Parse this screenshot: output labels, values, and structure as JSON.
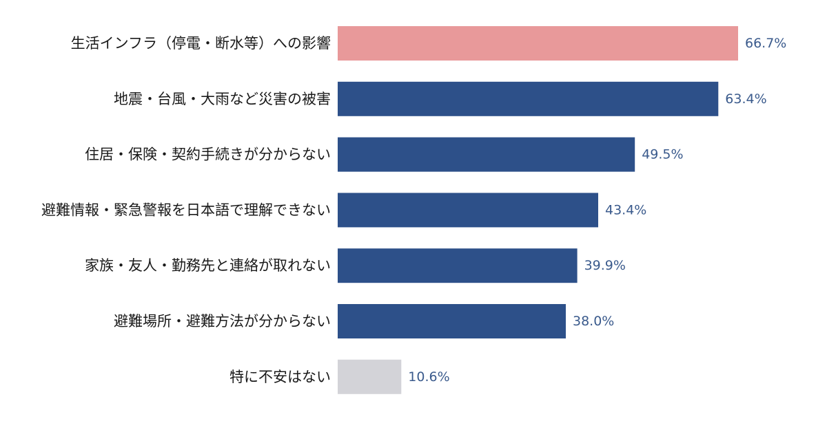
{
  "chart_data": {
    "type": "bar",
    "orientation": "horizontal",
    "categories": [
      "生活インフラ（停電・断水等）への影響",
      "地震・台風・大雨など災害の被害",
      "住居・保険・契約手続きが分からない",
      "避難情報・緊急警報を日本語で理解できない",
      "家族・友人・勤務先と連絡が取れない",
      "避難場所・避難方法が分からない",
      "特に不安はない"
    ],
    "values": [
      66.7,
      63.4,
      49.5,
      43.4,
      39.9,
      38.0,
      10.6
    ],
    "value_labels": [
      "66.7%",
      "63.4%",
      "49.5%",
      "43.4%",
      "39.9%",
      "38.0%",
      "10.6%"
    ],
    "xlim": [
      0,
      100
    ],
    "unit": "%",
    "grid": false,
    "legend": "none",
    "bar_colors": [
      "#e8999a",
      "#2d5089",
      "#2d5089",
      "#2d5089",
      "#2d5089",
      "#2d5089",
      "#d3d3d8"
    ],
    "label_color": "#3a5a8c"
  }
}
